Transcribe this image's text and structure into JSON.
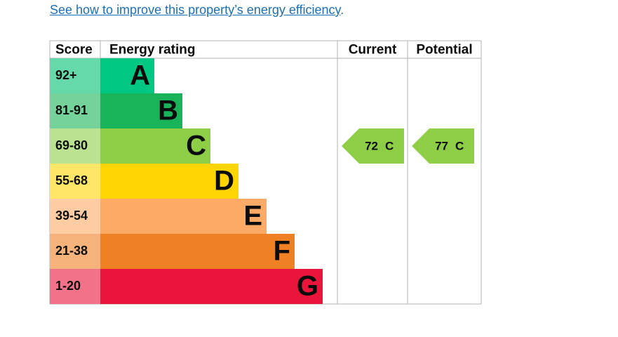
{
  "link": {
    "text": "See how to improve this property’s energy efficiency",
    "after": "."
  },
  "table": {
    "headers": [
      "Score",
      "Energy rating",
      "Current",
      "Potential"
    ],
    "bands": [
      {
        "score": "92+",
        "letter": "A",
        "color": "#00c781",
        "light": "#66d9ab"
      },
      {
        "score": "81-91",
        "letter": "B",
        "color": "#19b459",
        "light": "#75d29b"
      },
      {
        "score": "69-80",
        "letter": "C",
        "color": "#8dce46",
        "light": "#bbe290"
      },
      {
        "score": "55-68",
        "letter": "D",
        "color": "#ffd500",
        "light": "#ffe666"
      },
      {
        "score": "39-54",
        "letter": "E",
        "color": "#fcaa65",
        "light": "#fdcca3"
      },
      {
        "score": "21-38",
        "letter": "F",
        "color": "#ef8023",
        "light": "#f5b27b"
      },
      {
        "score": "1-20",
        "letter": "G",
        "color": "#e9153b",
        "light": "#f27389"
      }
    ],
    "current": {
      "score": 72,
      "letter": "C"
    },
    "potential": {
      "score": 77,
      "letter": "C"
    }
  }
}
